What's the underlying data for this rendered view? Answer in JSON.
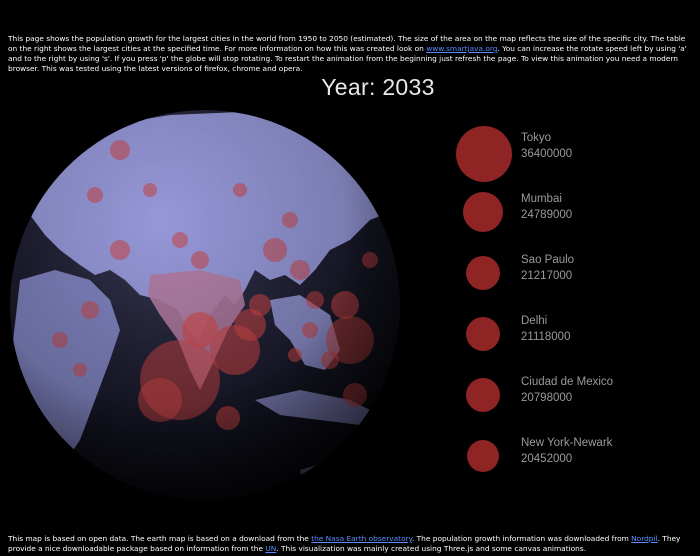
{
  "intro": {
    "text_before_link": "This page shows the population growth for the largest cities in the world from 1950 to 2050 (estimated). The size of the area on the map reflects the size of the specific city. The table on the right shows the largest cities at the specified time. For more information on how this was created look on ",
    "link_text": "www.smartjava.org",
    "text_after_link": ". You can increase the rotate speed left by using 'a' and to the right by using 's'. If you press 'p' the globe will stop rotating. To restart the animation from the beginning just refresh the page. To view this animation you need a modern browser. This was tested using the latest versions of firefox, chrome and opera."
  },
  "year_label": "Year: 2033",
  "cities": [
    {
      "name": "Tokyo",
      "population": "36400000"
    },
    {
      "name": "Mumbai",
      "population": "24789000"
    },
    {
      "name": "Sao Paulo",
      "population": "21217000"
    },
    {
      "name": "Delhi",
      "population": "21118000"
    },
    {
      "name": "Ciudad de Mexico",
      "population": "20798000"
    },
    {
      "name": "New York-Newark",
      "population": "20452000"
    }
  ],
  "footer": {
    "text1": "This map is based on open data. The earth map is based on a download from the ",
    "link1": "the Nasa Earth observatory",
    "text2": ". The population growth information was downloaded from ",
    "link2": "Nordpil",
    "text3": ". They provide a nice downloadable package based on information from the ",
    "link3": "UN",
    "text4": ". This visualization was mainly created using Three.js and some canvas animations."
  },
  "colors": {
    "background": "#000000",
    "city_marker": "#8e2424",
    "land": "#a6a8ee",
    "ocean": "#1c1c2e",
    "link": "#5a8cff",
    "city_text": "#9a9a9a"
  }
}
